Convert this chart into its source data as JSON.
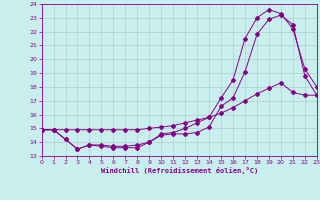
{
  "xlabel": "Windchill (Refroidissement éolien,°C)",
  "xlim": [
    0,
    23
  ],
  "ylim": [
    13,
    24
  ],
  "yticks": [
    13,
    14,
    15,
    16,
    17,
    18,
    19,
    20,
    21,
    22,
    23,
    24
  ],
  "xticks": [
    0,
    1,
    2,
    3,
    4,
    5,
    6,
    7,
    8,
    9,
    10,
    11,
    12,
    13,
    14,
    15,
    16,
    17,
    18,
    19,
    20,
    21,
    22,
    23
  ],
  "bg_color": "#c8eeee",
  "grid_color": "#b0cccc",
  "line_color": "#880088",
  "line1_x": [
    0,
    1,
    2,
    3,
    4,
    5,
    6,
    7,
    8,
    9,
    10,
    11,
    12,
    13,
    14,
    15,
    16,
    17,
    18,
    19,
    20,
    21,
    22,
    23
  ],
  "line1_y": [
    14.9,
    14.9,
    14.2,
    13.5,
    13.8,
    13.7,
    13.6,
    13.6,
    13.6,
    14.0,
    14.5,
    14.6,
    14.6,
    14.7,
    15.1,
    16.6,
    17.2,
    19.1,
    21.8,
    22.9,
    23.2,
    22.5,
    18.8,
    17.4
  ],
  "line2_x": [
    0,
    1,
    2,
    3,
    4,
    5,
    6,
    7,
    8,
    9,
    10,
    11,
    12,
    13,
    14,
    15,
    16,
    17,
    18,
    19,
    20,
    21,
    22,
    23
  ],
  "line2_y": [
    14.9,
    14.9,
    14.9,
    14.9,
    14.9,
    14.9,
    14.9,
    14.9,
    14.9,
    15.0,
    15.1,
    15.2,
    15.4,
    15.6,
    15.8,
    16.1,
    16.5,
    17.0,
    17.5,
    17.9,
    18.3,
    17.6,
    17.4,
    17.4
  ],
  "line3_x": [
    0,
    1,
    2,
    3,
    4,
    5,
    6,
    7,
    8,
    9,
    10,
    11,
    12,
    13,
    14,
    15,
    16,
    17,
    18,
    19,
    20,
    21,
    22,
    23
  ],
  "line3_y": [
    14.9,
    14.9,
    14.2,
    13.5,
    13.8,
    13.8,
    13.7,
    13.7,
    13.8,
    14.0,
    14.6,
    14.7,
    15.0,
    15.4,
    15.8,
    17.2,
    18.5,
    21.5,
    23.0,
    23.6,
    23.3,
    22.2,
    19.3,
    18.0
  ]
}
